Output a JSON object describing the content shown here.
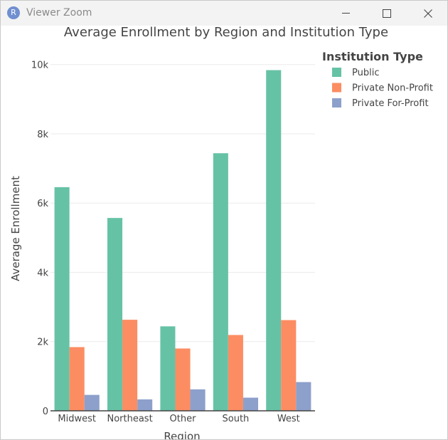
{
  "window": {
    "title": "Viewer Zoom",
    "app_icon_letter": "R"
  },
  "chart_data": {
    "type": "bar",
    "title": "Average Enrollment by Region and Institution Type",
    "xlabel": "Region",
    "ylabel": "Average Enrollment",
    "categories": [
      "Midwest",
      "Northeast",
      "Other",
      "South",
      "West"
    ],
    "series": [
      {
        "name": "Public",
        "color": "#66c2a5",
        "values": [
          6460,
          5570,
          2440,
          7440,
          9840
        ]
      },
      {
        "name": "Private Non-Profit",
        "color": "#fc8d62",
        "values": [
          1840,
          2630,
          1800,
          2190,
          2620
        ]
      },
      {
        "name": "Private For-Profit",
        "color": "#8da0cb",
        "values": [
          460,
          330,
          620,
          380,
          830
        ]
      }
    ],
    "ylim": [
      0,
      10200
    ],
    "yticks": [
      0,
      2000,
      4000,
      6000,
      8000,
      10000
    ],
    "ytick_labels": [
      "0",
      "2k",
      "4k",
      "6k",
      "8k",
      "10k"
    ],
    "grid": true,
    "legend": {
      "title": "Institution Type",
      "position": "top-right"
    }
  }
}
